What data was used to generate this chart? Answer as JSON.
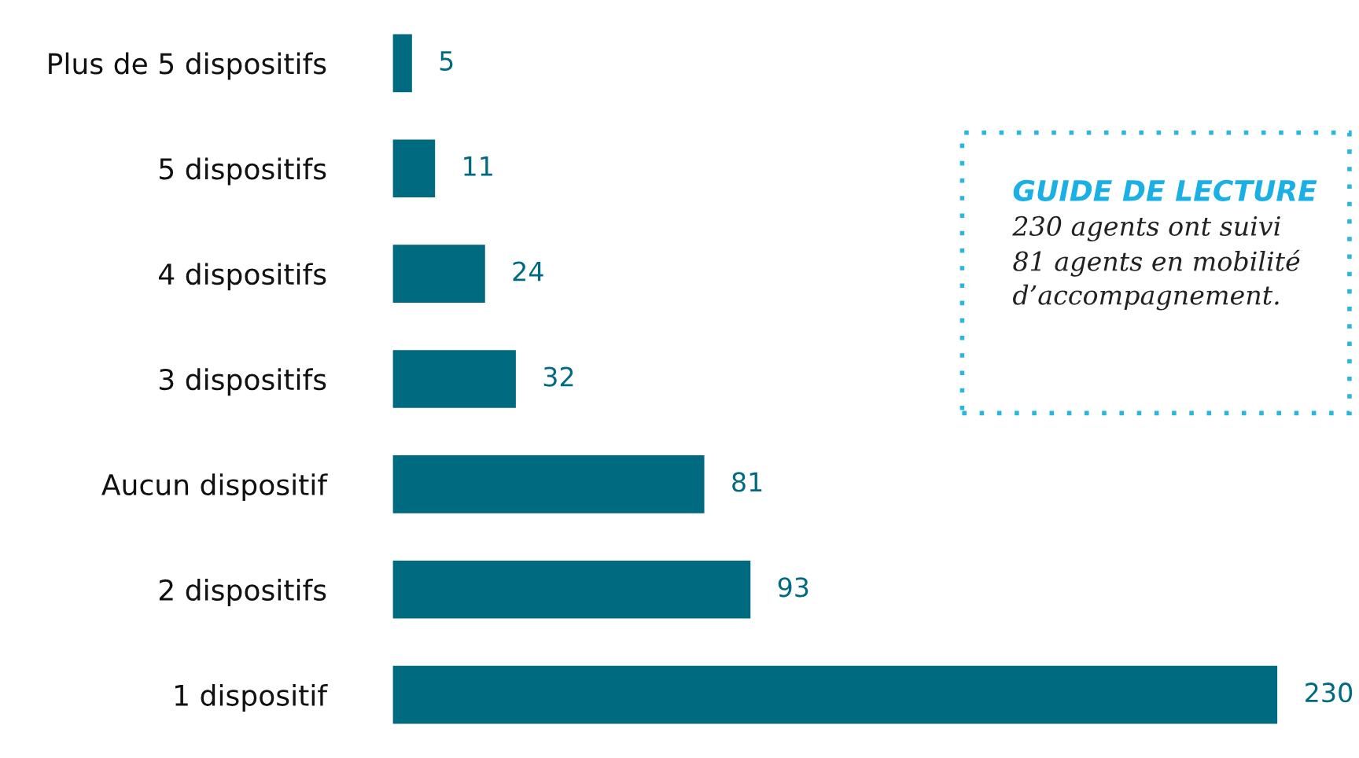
{
  "chart_data": {
    "type": "bar",
    "orientation": "horizontal",
    "categories": [
      "Plus de 5 dispositifs",
      "5 dispositifs",
      "4 dispositifs",
      "3 dispositifs",
      "Aucun dispositif",
      "2 dispositifs",
      "1 dispositif"
    ],
    "values": [
      5,
      11,
      24,
      32,
      81,
      93,
      230
    ],
    "color": "#006b80",
    "data_labels": true,
    "annotations": [
      "GUIDE DE LECTURE",
      "230 agents ont suivi\n81 agents en mobilité\nd’accompagnement."
    ]
  }
}
